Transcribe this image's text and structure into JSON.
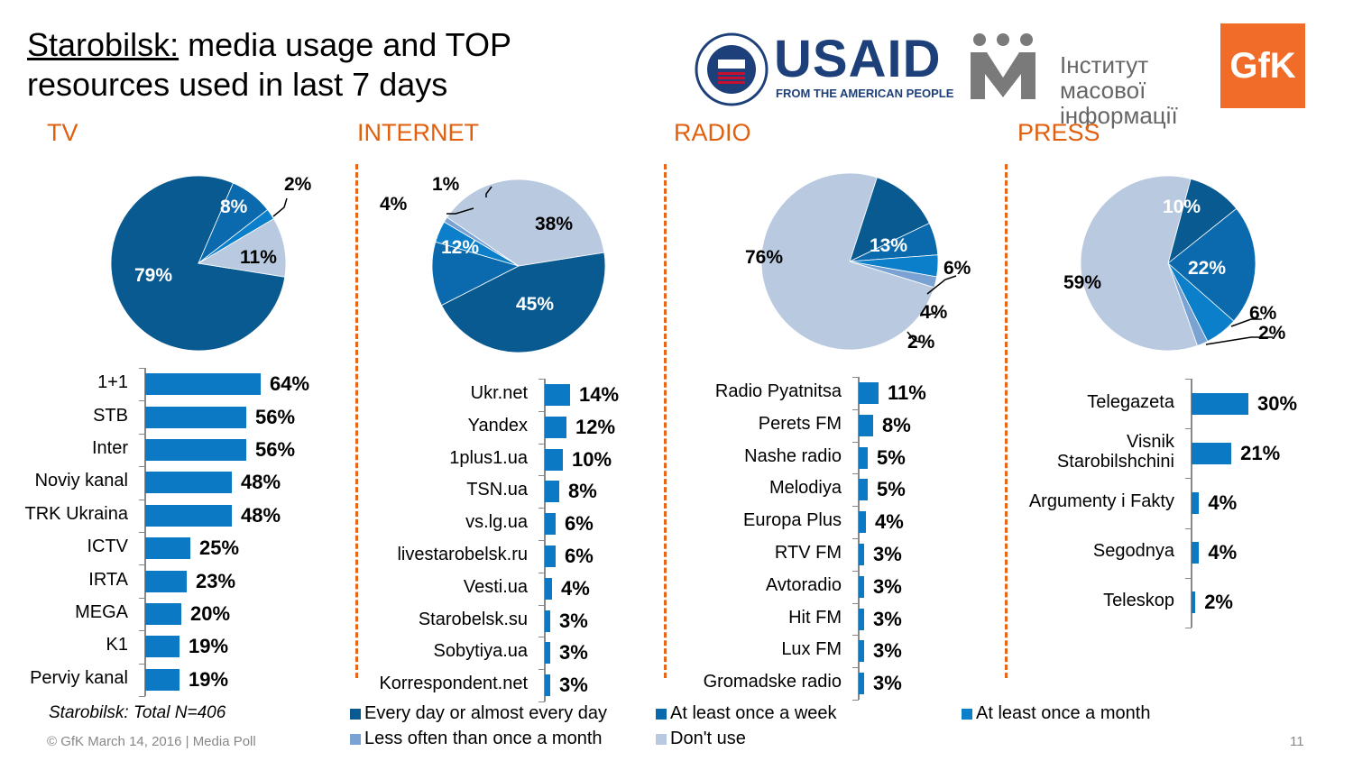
{
  "title": {
    "location": "Starobilsk:",
    "rest": " media usage and TOP resources used in last 7 days"
  },
  "logos": {
    "usaid": "USAID",
    "usaid_tagline": "FROM THE AMERICAN PEOPLE",
    "imi": "Інститут масової інформації",
    "gfk": "GfK"
  },
  "colors": {
    "every_day": "#0a5a92",
    "weekly": "#0b6aad",
    "monthly": "#0b7fc9",
    "less_often": "#7aa3d3",
    "dont_use": "#b8c9e0",
    "bar": "#0b79c4",
    "section": "#e0600f"
  },
  "legend": [
    {
      "key": "every_day",
      "label": "Every day or almost every day"
    },
    {
      "key": "weekly",
      "label": "At least once a week"
    },
    {
      "key": "monthly",
      "label": "At least once a month"
    },
    {
      "key": "less_often",
      "label": "Less often than once a month"
    },
    {
      "key": "dont_use",
      "label": "Don't use"
    }
  ],
  "note": "Starobilsk: Total N=406",
  "footer": "© GfK March 14, 2016 | Media Poll",
  "page_number": "11",
  "chart_data": [
    {
      "type": "pie",
      "section": "TV",
      "slices": [
        {
          "key": "every_day",
          "value": 79,
          "label": "79%"
        },
        {
          "key": "weekly",
          "value": 8,
          "label": "8%"
        },
        {
          "key": "monthly",
          "value": 2,
          "label": "2%"
        },
        {
          "key": "less_often",
          "value": 0,
          "label": ""
        },
        {
          "key": "dont_use",
          "value": 11,
          "label": "11%"
        }
      ]
    },
    {
      "type": "pie",
      "section": "INTERNET",
      "slices": [
        {
          "key": "every_day",
          "value": 45,
          "label": "45%"
        },
        {
          "key": "weekly",
          "value": 12,
          "label": "12%"
        },
        {
          "key": "monthly",
          "value": 4,
          "label": "4%"
        },
        {
          "key": "less_often",
          "value": 1,
          "label": "1%"
        },
        {
          "key": "dont_use",
          "value": 38,
          "label": "38%"
        }
      ]
    },
    {
      "type": "pie",
      "section": "RADIO",
      "slices": [
        {
          "key": "every_day",
          "value": 13,
          "label": "13%"
        },
        {
          "key": "weekly",
          "value": 6,
          "label": "6%"
        },
        {
          "key": "monthly",
          "value": 4,
          "label": "4%"
        },
        {
          "key": "less_often",
          "value": 2,
          "label": "2%"
        },
        {
          "key": "dont_use",
          "value": 76,
          "label": "76%"
        }
      ]
    },
    {
      "type": "pie",
      "section": "PRESS",
      "slices": [
        {
          "key": "every_day",
          "value": 10,
          "label": "10%"
        },
        {
          "key": "weekly",
          "value": 22,
          "label": "22%"
        },
        {
          "key": "monthly",
          "value": 6,
          "label": "6%"
        },
        {
          "key": "less_often",
          "value": 2,
          "label": "2%"
        },
        {
          "key": "dont_use",
          "value": 59,
          "label": "59%"
        }
      ]
    },
    {
      "type": "bar",
      "section": "TV",
      "categories": [
        "1+1",
        "STB",
        "Inter",
        "Noviy kanal",
        "TRK Ukraina",
        "ICTV",
        "IRTA",
        "MEGA",
        "K1",
        "Perviy kanal"
      ],
      "values": [
        64,
        56,
        56,
        48,
        48,
        25,
        23,
        20,
        19,
        19
      ],
      "labels": [
        "64%",
        "56%",
        "56%",
        "48%",
        "48%",
        "25%",
        "23%",
        "20%",
        "19%",
        "19%"
      ]
    },
    {
      "type": "bar",
      "section": "INTERNET",
      "categories": [
        "Ukr.net",
        "Yandex",
        "1plus1.ua",
        "TSN.ua",
        "vs.lg.ua",
        "livestarobelsk.ru",
        "Vesti.ua",
        "Starobelsk.su",
        "Sobytiya.ua",
        "Korrespondent.net"
      ],
      "values": [
        14,
        12,
        10,
        8,
        6,
        6,
        4,
        3,
        3,
        3
      ],
      "labels": [
        "14%",
        "12%",
        "10%",
        "8%",
        "6%",
        "6%",
        "4%",
        "3%",
        "3%",
        "3%"
      ]
    },
    {
      "type": "bar",
      "section": "RADIO",
      "categories": [
        "Radio Pyatnitsa",
        "Perets FM",
        "Nashe radio",
        "Melodiya",
        "Europa Plus",
        "RTV FM",
        "Avtoradio",
        "Hit FM",
        "Lux FM",
        "Gromadske radio"
      ],
      "values": [
        11,
        8,
        5,
        5,
        4,
        3,
        3,
        3,
        3,
        3
      ],
      "labels": [
        "11%",
        "8%",
        "5%",
        "5%",
        "4%",
        "3%",
        "3%",
        "3%",
        "3%",
        "3%"
      ]
    },
    {
      "type": "bar",
      "section": "PRESS",
      "categories": [
        "Telegazeta",
        "Visnik Starobilshchini",
        "Argumenty i Fakty",
        "Segodnya",
        "Teleskop"
      ],
      "values": [
        30,
        21,
        4,
        4,
        2
      ],
      "labels": [
        "30%",
        "21%",
        "4%",
        "4%",
        "2%"
      ]
    }
  ]
}
